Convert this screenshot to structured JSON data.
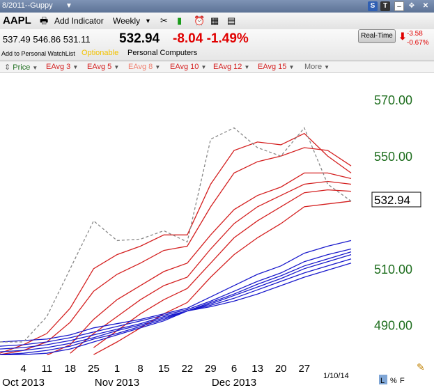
{
  "window": {
    "title": "8/2011--Guppy",
    "colors": {
      "titlebar": "#6b81a5"
    }
  },
  "toolbar": {
    "symbol": "AAPL",
    "add_indicator": "Add Indicator",
    "period": "Weekly"
  },
  "quote": {
    "open": "537.49",
    "high": "546.86",
    "low": "531.11",
    "last": "532.94",
    "change": "-8.04",
    "change_pct": "-1.49%",
    "watchlist": "Add to Personal WatchList",
    "optionable": "Optionable",
    "industry": "Personal Computers",
    "realtime_label": "Real-Time",
    "rt_change": "-3.58",
    "rt_change_pct": "-0.67%"
  },
  "studies": [
    {
      "label": "Price",
      "color": "#1e6e1e"
    },
    {
      "label": "EAvg 3",
      "color": "#d42020"
    },
    {
      "label": "EAvg 5",
      "color": "#d42020"
    },
    {
      "label": "EAvg 8",
      "color": "#f08070"
    },
    {
      "label": "EAvg 10",
      "color": "#d42020"
    },
    {
      "label": "EAvg 12",
      "color": "#d42020"
    },
    {
      "label": "EAvg 15",
      "color": "#d42020"
    },
    {
      "label": "More",
      "color": "#666666"
    }
  ],
  "footer": {
    "date": "1/10/14",
    "scale_l": "L",
    "scale_pct": "%",
    "scale_f": "F"
  },
  "chart_data": {
    "type": "line",
    "y_ticks": [
      490,
      510,
      550,
      570
    ],
    "y_tick_labels": [
      "490.00",
      "510.00",
      "550.00",
      "570.00"
    ],
    "ylim": [
      479.3,
      579.2
    ],
    "x_tick_labels": [
      "4",
      "11",
      "18",
      "25",
      "1",
      "8",
      "15",
      "22",
      "29",
      "6",
      "13",
      "20",
      "27"
    ],
    "month_labels": [
      "Oct 2013",
      "Nov 2013",
      "Dec 2013"
    ],
    "last_price_label": "532.94",
    "x": [
      "Sep 27",
      "Oct 4",
      "Oct 11",
      "Oct 18",
      "Oct 25",
      "Nov 1",
      "Nov 8",
      "Nov 15",
      "Nov 22",
      "Nov 29",
      "Dec 6",
      "Dec 13",
      "Dec 20",
      "Dec 27",
      "Jan 3",
      "Jan 10"
    ],
    "price": {
      "color": "#888888",
      "values": [
        484,
        484,
        493,
        510,
        527,
        520,
        520.5,
        523.5,
        519.5,
        556,
        560,
        553,
        550,
        560,
        540,
        534
      ]
    },
    "series": [
      {
        "color": "#d42020",
        "values": [
          480,
          483,
          487,
          496,
          510,
          515,
          518,
          522,
          522,
          540,
          552,
          555,
          554,
          558,
          550,
          544
        ]
      },
      {
        "color": "#d42020",
        "values": [
          479.5,
          481,
          484,
          491,
          502,
          508,
          512,
          516.5,
          518,
          532,
          544,
          548,
          550,
          553,
          552,
          546.5
        ]
      },
      {
        "color": "#f08070",
        "values": null
      },
      {
        "color": "#d42020",
        "values": [
          null,
          null,
          479.3,
          483,
          492,
          499,
          504,
          509,
          512,
          522,
          531,
          536,
          539,
          544,
          544,
          542
        ]
      },
      {
        "color": "#d42020",
        "values": [
          null,
          null,
          null,
          480,
          487,
          493,
          499,
          504,
          507,
          517,
          526,
          532,
          536,
          540,
          541,
          540
        ]
      },
      {
        "color": "#d42020",
        "values": [
          null,
          null,
          null,
          null,
          482,
          488,
          494,
          499,
          503,
          512,
          521,
          527,
          532,
          537,
          538,
          537.5
        ]
      },
      {
        "color": "#d42020",
        "values": [
          null,
          null,
          null,
          null,
          479.5,
          484,
          489,
          494,
          498,
          507,
          515,
          521,
          526,
          532,
          533,
          534
        ]
      },
      {
        "color": "#1a1acc",
        "values": [
          484,
          484.5,
          485,
          486.5,
          489,
          490.5,
          492,
          494,
          496,
          500,
          504,
          508,
          511,
          515.5,
          518,
          520
        ]
      },
      {
        "color": "#1a1acc",
        "values": [
          482.5,
          483,
          484,
          485.5,
          487.5,
          489.5,
          491.5,
          493.5,
          495.5,
          498.5,
          502,
          505.5,
          508.5,
          512.5,
          515,
          517
        ]
      },
      {
        "color": "#1a1acc",
        "values": [
          481.5,
          482,
          483,
          484.5,
          486.5,
          488.5,
          490.5,
          493,
          495,
          498,
          501,
          504.5,
          507.5,
          511,
          513.5,
          516
        ]
      },
      {
        "color": "#1a1acc",
        "values": [
          480.5,
          481,
          482,
          483.5,
          485.5,
          488,
          490,
          492.5,
          495,
          497.5,
          500.5,
          503.5,
          506.5,
          510,
          512.5,
          515
        ]
      },
      {
        "color": "#1a1acc",
        "values": [
          479.5,
          480,
          481,
          482.5,
          485,
          487,
          489.5,
          492,
          495,
          497,
          499.5,
          502.5,
          505.5,
          508.5,
          511,
          513.5
        ]
      },
      {
        "color": "#1a1acc",
        "values": [
          479.3,
          479.5,
          480,
          481.5,
          484,
          486.5,
          489,
          491.5,
          495,
          496.5,
          498.5,
          501,
          504,
          507,
          509.5,
          512
        ]
      }
    ],
    "grid": false
  }
}
